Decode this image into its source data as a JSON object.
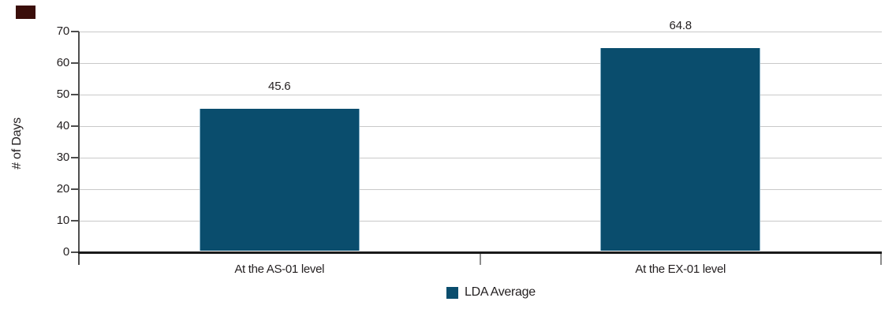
{
  "corner_mark": {
    "color": "#3a0e0a"
  },
  "colors": {
    "bar_fill": "#0a4d6d",
    "bar_edge": "#85b0c6",
    "gridline": "#c9c9c9",
    "x_axis": "#1a1a1a",
    "y_axis": "#4d4d4d",
    "boundary_tick": "#8c8c8c",
    "text": "#231f20"
  },
  "chart_data": {
    "type": "bar",
    "categories": [
      "At the AS-01 level",
      "At the EX-01 level"
    ],
    "series": [
      {
        "name": "LDA Average",
        "values": [
          45.6,
          64.8
        ],
        "color": "#0a4d6d"
      }
    ],
    "value_labels": [
      "45.6",
      "64.8"
    ],
    "title": "",
    "xlabel": "",
    "ylabel": "# of Days",
    "ylim": [
      0,
      70
    ],
    "yticks": [
      0,
      10,
      20,
      30,
      40,
      50,
      60,
      70
    ],
    "grid": "horizontal",
    "legend_position": "bottom",
    "legend": [
      "LDA Average"
    ]
  }
}
